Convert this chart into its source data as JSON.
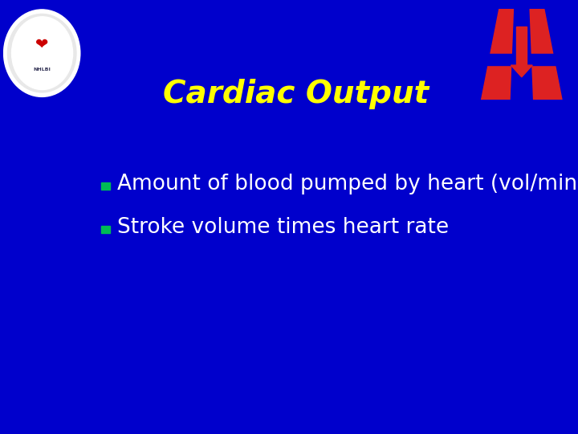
{
  "background_color": "#0000CC",
  "title": "Cardiac Output",
  "title_color": "#FFFF00",
  "title_fontsize": 28,
  "bullet_color": "#00BB55",
  "bullet_text_color": "#FFFFFF",
  "bullet_fontsize": 19,
  "bullets": [
    "Amount of blood pumped by heart (vol/min)",
    "Stroke volume times heart rate"
  ],
  "logo_red": "#DD2222"
}
